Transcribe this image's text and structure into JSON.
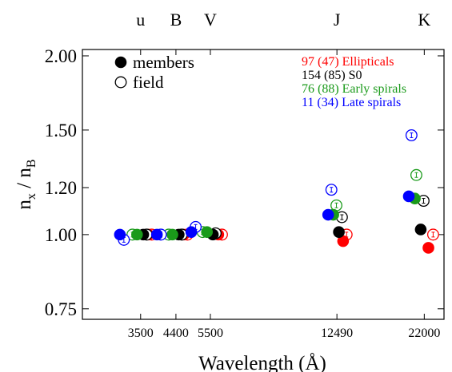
{
  "chart_data": {
    "type": "scatter",
    "title": "",
    "xlabel": "Wavelength (Å)",
    "ylabel_main": "n",
    "ylabel_sub_num": "x",
    "ylabel_slash": " / n",
    "ylabel_sub_den": "B",
    "y_scale": "log",
    "ylim": [
      0.72,
      2.05
    ],
    "xlim": [
      2400,
      25000
    ],
    "x_ticks": [
      {
        "value": 3500,
        "label": "3500"
      },
      {
        "value": 4400,
        "label": "4400"
      },
      {
        "value": 5500,
        "label": "5500"
      },
      {
        "value": 12490,
        "label": "12490"
      },
      {
        "value": 22000,
        "label": "22000"
      }
    ],
    "y_ticks": [
      {
        "value": 0.75,
        "label": "0.75"
      },
      {
        "value": 1.0,
        "label": "1.00"
      },
      {
        "value": 1.2,
        "label": "1.20"
      },
      {
        "value": 1.5,
        "label": "1.50"
      },
      {
        "value": 2.0,
        "label": "2.00"
      }
    ],
    "bands": [
      {
        "value": 3500,
        "label": "u"
      },
      {
        "value": 4400,
        "label": "B"
      },
      {
        "value": 5500,
        "label": "V"
      },
      {
        "value": 12490,
        "label": "J"
      },
      {
        "value": 22000,
        "label": "K"
      }
    ],
    "symbol_legend": [
      {
        "label": "members",
        "marker": "filled"
      },
      {
        "label": "field",
        "marker": "open"
      }
    ],
    "series": [
      {
        "name": "97 (47) Ellipticals",
        "color": "#ff0000",
        "members": [
          [
            3680,
            1.0
          ],
          [
            4630,
            1.0
          ],
          [
            5790,
            1.0
          ],
          [
            13000,
            0.975
          ],
          [
            22600,
            0.95
          ]
        ],
        "field": [
          [
            3760,
            1.0
          ],
          [
            4740,
            1.0
          ],
          [
            5930,
            1.0
          ],
          [
            13300,
            1.0
          ],
          [
            23300,
            1.0
          ]
        ]
      },
      {
        "name": "154 (85) S0",
        "color": "#000000",
        "members": [
          [
            3560,
            1.0
          ],
          [
            4480,
            1.0
          ],
          [
            5590,
            1.0
          ],
          [
            12650,
            1.01
          ],
          [
            21500,
            1.02
          ]
        ],
        "field": [
          [
            3640,
            1.0
          ],
          [
            4570,
            1.0
          ],
          [
            5690,
            1.005
          ],
          [
            12900,
            1.07
          ],
          [
            21900,
            1.14
          ]
        ]
      },
      {
        "name": "76 (88) Early spirals",
        "color": "#1a9a1a",
        "members": [
          [
            3420,
            1.0
          ],
          [
            4300,
            1.0
          ],
          [
            5380,
            1.01
          ],
          [
            12200,
            1.08
          ],
          [
            20700,
            1.15
          ]
        ],
        "field": [
          [
            3320,
            1.0
          ],
          [
            4200,
            1.0
          ],
          [
            5230,
            1.01
          ],
          [
            12450,
            1.12
          ],
          [
            20900,
            1.26
          ]
        ]
      },
      {
        "name": "11 (34) Late spirals",
        "color": "#0000ff",
        "members": [
          [
            3060,
            1.0
          ],
          [
            3890,
            1.0
          ],
          [
            4860,
            1.01
          ],
          [
            11800,
            1.08
          ],
          [
            19900,
            1.16
          ]
        ],
        "field": [
          [
            3140,
            0.98
          ],
          [
            3990,
            1.0
          ],
          [
            5000,
            1.03
          ],
          [
            12050,
            1.19
          ],
          [
            20250,
            1.47
          ]
        ]
      }
    ]
  }
}
